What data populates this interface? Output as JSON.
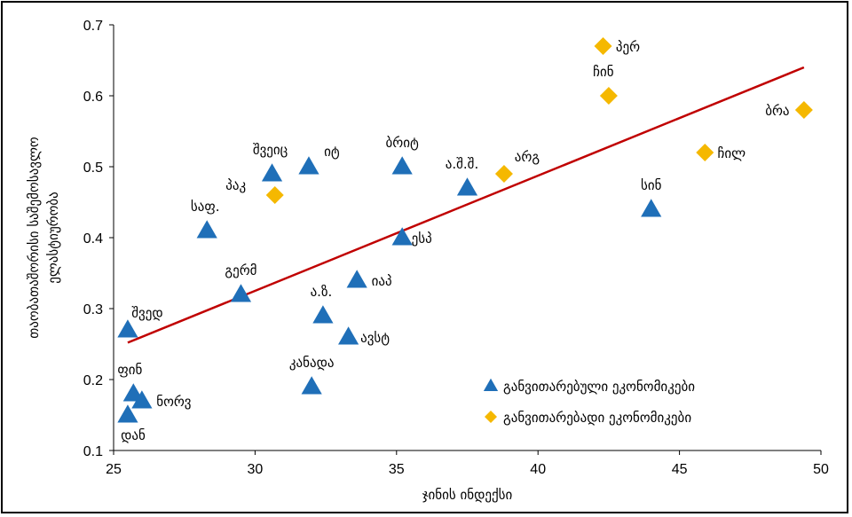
{
  "chart_data": {
    "type": "scatter",
    "xlabel": "ჯინის ინდექსი",
    "ylabel": "თაობათაშორისი საშემოსავლო ელასტიურობა",
    "xlim": [
      25,
      50
    ],
    "ylim": [
      0.1,
      0.7
    ],
    "x_ticks": [
      "25",
      "30",
      "35",
      "40",
      "45",
      "50"
    ],
    "y_ticks": [
      "0.1",
      "0.2",
      "0.3",
      "0.4",
      "0.5",
      "0.6",
      "0.7"
    ],
    "grid": false,
    "legend_position": "bottom-right",
    "colors": {
      "developed": "#1f6fb8",
      "developing": "#f5b800",
      "trendline": "#c00000"
    },
    "series": [
      {
        "name": "განვითარებული ეკონომიკები",
        "marker": "triangle",
        "points": [
          {
            "label": "შვეიც",
            "x": 30.6,
            "y": 0.49
          },
          {
            "label": "იტ",
            "x": 31.9,
            "y": 0.5
          },
          {
            "label": "ბრიტ",
            "x": 35.2,
            "y": 0.5
          },
          {
            "label": "ა.შ.შ.",
            "x": 37.5,
            "y": 0.47
          },
          {
            "label": "საფ.",
            "x": 28.3,
            "y": 0.41
          },
          {
            "label": "ესპ",
            "x": 35.2,
            "y": 0.4
          },
          {
            "label": "სინ",
            "x": 44.0,
            "y": 0.44
          },
          {
            "label": "გერმ",
            "x": 29.5,
            "y": 0.32
          },
          {
            "label": "იაპ",
            "x": 33.6,
            "y": 0.34
          },
          {
            "label": "ა.ზ.",
            "x": 32.4,
            "y": 0.29
          },
          {
            "label": "ავსტ",
            "x": 33.3,
            "y": 0.26
          },
          {
            "label": "შვედ",
            "x": 25.5,
            "y": 0.27
          },
          {
            "label": "ფინ",
            "x": 25.7,
            "y": 0.18
          },
          {
            "label": "ნორვ",
            "x": 26.0,
            "y": 0.17
          },
          {
            "label": "დან",
            "x": 25.5,
            "y": 0.15
          },
          {
            "label": "კანადა",
            "x": 32.0,
            "y": 0.19
          }
        ]
      },
      {
        "name": "განვითარებადი ეკონომიკები",
        "marker": "diamond",
        "points": [
          {
            "label": "პერ",
            "x": 42.3,
            "y": 0.67
          },
          {
            "label": "ჩინ",
            "x": 42.5,
            "y": 0.6
          },
          {
            "label": "ბრა",
            "x": 49.4,
            "y": 0.58
          },
          {
            "label": "ჩილ",
            "x": 45.9,
            "y": 0.52
          },
          {
            "label": "არგ",
            "x": 38.8,
            "y": 0.49
          },
          {
            "label": "პაკ",
            "x": 30.7,
            "y": 0.46
          }
        ]
      }
    ],
    "trendline": {
      "x": [
        25.5,
        49.4
      ],
      "y": [
        0.252,
        0.64
      ]
    }
  }
}
